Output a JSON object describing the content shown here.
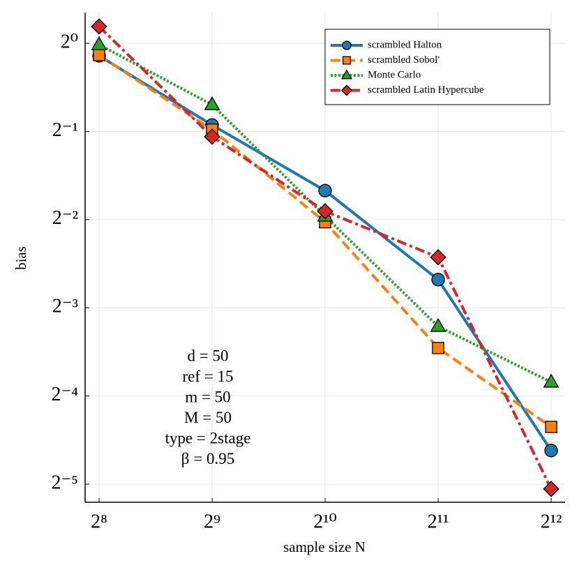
{
  "chart_data": {
    "type": "line",
    "xlabel": "sample size N",
    "ylabel": "bias",
    "x": [
      256,
      512,
      1024,
      2048,
      4096
    ],
    "xscale": "log2",
    "yscale": "log2",
    "xlim": [
      235,
      4460
    ],
    "ylim": [
      0.0271,
      1.273
    ],
    "xticks": [
      {
        "value": 256,
        "label": "2⁸"
      },
      {
        "value": 512,
        "label": "2⁹"
      },
      {
        "value": 1024,
        "label": "2¹⁰"
      },
      {
        "value": 2048,
        "label": "2¹¹"
      },
      {
        "value": 4096,
        "label": "2¹²"
      }
    ],
    "yticks": [
      {
        "value": 1,
        "label": "2⁰"
      },
      {
        "value": 0.5,
        "label": "2⁻¹"
      },
      {
        "value": 0.25,
        "label": "2⁻²"
      },
      {
        "value": 0.125,
        "label": "2⁻³"
      },
      {
        "value": 0.0625,
        "label": "2⁻⁴"
      },
      {
        "value": 0.03125,
        "label": "2⁻⁵"
      }
    ],
    "grid": true,
    "legend": "upper right",
    "series": [
      {
        "name": "scrambled Halton",
        "color": "#1f77b4",
        "linestyle": "solid",
        "marker": "circle",
        "values": [
          0.906,
          0.526,
          0.314,
          0.156,
          0.0407
        ]
      },
      {
        "name": "scrambled Sobol'",
        "color": "#ff7f0e",
        "linestyle": "dashed",
        "marker": "square",
        "values": [
          0.911,
          0.507,
          0.245,
          0.0911,
          0.049
        ]
      },
      {
        "name": "Monte Carlo",
        "color": "#2ca02c",
        "linestyle": "dotted",
        "marker": "triangle",
        "values": [
          0.989,
          0.617,
          0.257,
          0.108,
          0.0697
        ]
      },
      {
        "name": "scrambled Latin Hypercube",
        "color": "#d62728",
        "linestyle": "dashdot",
        "marker": "diamond",
        "values": [
          1.141,
          0.48,
          0.267,
          0.186,
          0.0301
        ]
      }
    ],
    "annotations": [
      "d = 50",
      "ref = 15",
      "m = 50",
      "M = 50",
      "type = 2stage",
      "β = 0.95"
    ]
  }
}
